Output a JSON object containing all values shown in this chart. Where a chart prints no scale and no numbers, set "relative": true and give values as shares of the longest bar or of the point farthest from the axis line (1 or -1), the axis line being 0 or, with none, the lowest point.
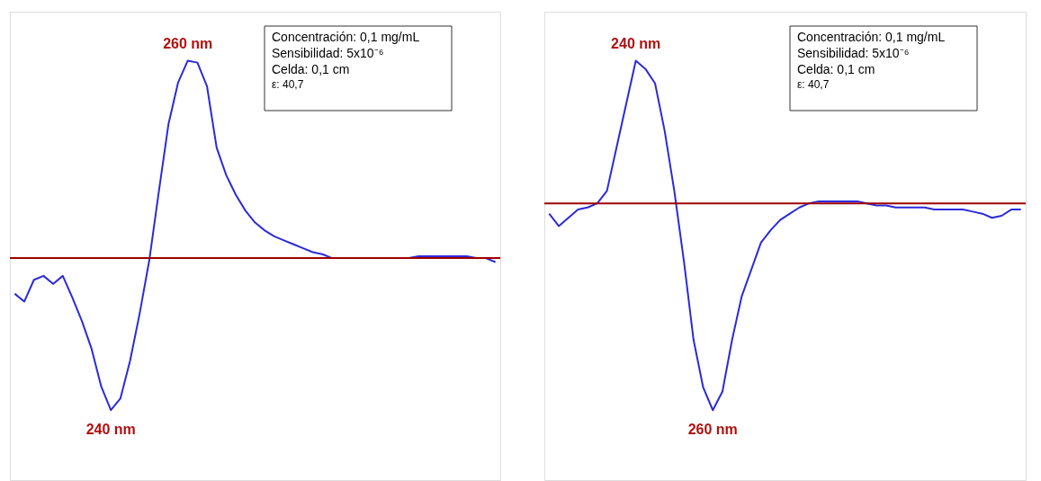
{
  "chart_data": [
    {
      "type": "line",
      "relative": true,
      "grid": false,
      "tick_labels": false,
      "marker": "none",
      "line_style": "solid",
      "categories": [
        null,
        null,
        null,
        null,
        null,
        null,
        null,
        null,
        null,
        null,
        null,
        null,
        null,
        null,
        null,
        null,
        null,
        null,
        null,
        null,
        null,
        null,
        null,
        null,
        null,
        null,
        null,
        null,
        null,
        null,
        null,
        null,
        null,
        null,
        null,
        null,
        null,
        null,
        null,
        null,
        null,
        null,
        null,
        null,
        null,
        null,
        null,
        null,
        null,
        null,
        null
      ],
      "series": [
        {
          "color": "#2b2bd9",
          "values": [
            -0.18,
            -0.22,
            -0.11,
            -0.09,
            -0.13,
            -0.09,
            -0.2,
            -0.32,
            -0.46,
            -0.65,
            -0.77,
            -0.71,
            -0.52,
            -0.28,
            -0.01,
            0.34,
            0.68,
            0.89,
            1.0,
            0.99,
            0.87,
            0.56,
            0.42,
            0.32,
            0.24,
            0.18,
            0.14,
            0.11,
            0.09,
            0.07,
            0.05,
            0.03,
            0.02,
            0.0,
            0.0,
            0.0,
            0.0,
            0.0,
            0.0,
            0.0,
            0.0,
            0.0,
            0.01,
            0.01,
            0.01,
            0.01,
            0.01,
            0.01,
            0.0,
            0.0,
            -0.02
          ]
        }
      ],
      "ref_lines": [
        {
          "axis": "y",
          "value": 0,
          "color": "#a00000",
          "line_style": "solid"
        }
      ],
      "annotations": [
        {
          "text": "260 nm",
          "y": 1.0
        },
        {
          "text": "240 nm",
          "y": -0.77
        },
        "Concentración: 0,1 mg/mL",
        "Sensibilidad: 5x10⁻⁶",
        "Celda: 0,1 cm",
        "ε: 40,7"
      ]
    },
    {
      "type": "line",
      "relative": true,
      "grid": false,
      "tick_labels": false,
      "marker": "none",
      "line_style": "solid",
      "categories": [
        null,
        null,
        null,
        null,
        null,
        null,
        null,
        null,
        null,
        null,
        null,
        null,
        null,
        null,
        null,
        null,
        null,
        null,
        null,
        null,
        null,
        null,
        null,
        null,
        null,
        null,
        null,
        null,
        null,
        null,
        null,
        null,
        null,
        null,
        null,
        null,
        null,
        null,
        null,
        null,
        null,
        null,
        null,
        null,
        null,
        null,
        null,
        null,
        null,
        null
      ],
      "series": [
        {
          "color": "#2b2bd9",
          "values": [
            -0.05,
            -0.11,
            -0.07,
            -0.03,
            -0.02,
            0.0,
            0.06,
            0.27,
            0.48,
            0.69,
            0.65,
            0.58,
            0.35,
            0.06,
            -0.28,
            -0.66,
            -0.89,
            -1.0,
            -0.91,
            -0.66,
            -0.45,
            -0.32,
            -0.19,
            -0.13,
            -0.08,
            -0.05,
            -0.02,
            0.0,
            0.01,
            0.01,
            0.01,
            0.01,
            0.01,
            0.0,
            -0.01,
            -0.01,
            -0.02,
            -0.02,
            -0.02,
            -0.02,
            -0.03,
            -0.03,
            -0.03,
            -0.03,
            -0.04,
            -0.05,
            -0.07,
            -0.06,
            -0.03,
            -0.03
          ]
        }
      ],
      "ref_lines": [
        {
          "axis": "y",
          "value": 0,
          "color": "#a00000",
          "line_style": "solid"
        }
      ],
      "annotations": [
        {
          "text": "240 nm",
          "y": 0.69
        },
        {
          "text": "260 nm",
          "y": -1.0
        },
        "Concentración: 0,1 mg/mL",
        "Sensibilidad: 5x10⁻⁶",
        "Celda: 0,1 cm",
        "ε: 40,7"
      ]
    }
  ]
}
